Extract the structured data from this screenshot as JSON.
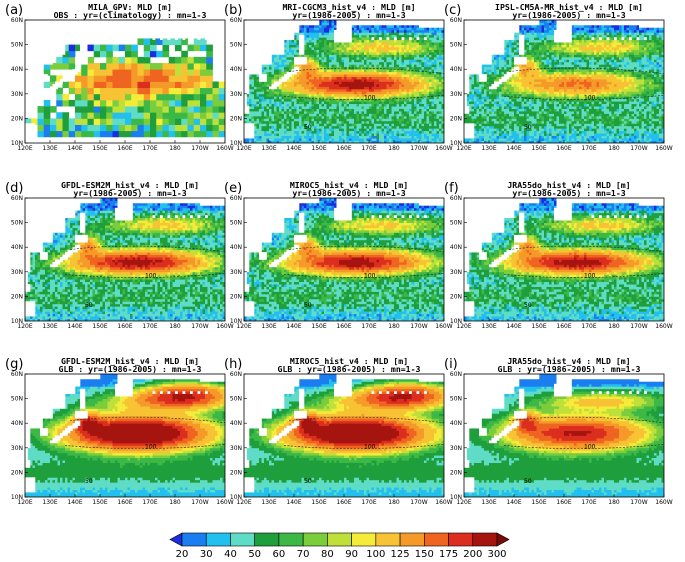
{
  "panels": [
    {
      "label": "(a)",
      "title1": "MILA_GPV: MLD [m]",
      "title2": "OBS : yr=(climatology) : mn=1-3",
      "type": "obs"
    },
    {
      "label": "(b)",
      "title1": "MRI-CGCM3_hist_v4 : MLD [m]",
      "title2": "yr=(1986-2005) : mn=1-3",
      "type": "model"
    },
    {
      "label": "(c)",
      "title1": "IPSL-CM5A-MR_hist_v4 : MLD [m]",
      "title2": "yr=(1986-2005) : mn=1-3",
      "type": "model"
    },
    {
      "label": "(d)",
      "title1": "GFDL-ESM2M_hist_v4 : MLD [m]",
      "title2": "yr=(1986-2005) : mn=1-3",
      "type": "model"
    },
    {
      "label": "(e)",
      "title1": "MIROC5_hist_v4 : MLD [m]",
      "title2": "yr=(1986-2005) : mn=1-3",
      "type": "model"
    },
    {
      "label": "(f)",
      "title1": "JRA55do_hist_v4 : MLD [m]",
      "title2": "yr=(1986-2005) : mn=1-3",
      "type": "model"
    },
    {
      "label": "(g)",
      "title1": "GFDL-ESM2M_hist_v4 : MLD [m]",
      "title2": "GLB : yr=(1986-2005) : mn=1-3",
      "type": "glb"
    },
    {
      "label": "(h)",
      "title1": "MIROC5_hist_v4 : MLD [m]",
      "title2": "GLB : yr=(1986-2005) : mn=1-3",
      "type": "glb"
    },
    {
      "label": "(i)",
      "title1": "JRA55do_hist_v4 : MLD [m]",
      "title2": "GLB : yr=(1986-2005) : mn=1-3",
      "type": "glb"
    }
  ],
  "chart_data": {
    "type": "heatmap",
    "variable": "MLD [m]",
    "x_ticks": [
      "120E",
      "130E",
      "140E",
      "150E",
      "160E",
      "170E",
      "180",
      "170W",
      "160W"
    ],
    "y_ticks": [
      "10N",
      "20N",
      "30N",
      "40N",
      "50N",
      "60N"
    ],
    "xlim": [
      120,
      200
    ],
    "ylim": [
      10,
      60
    ],
    "colorbar_levels": [
      "20",
      "30",
      "40",
      "50",
      "60",
      "70",
      "80",
      "90",
      "100",
      "125",
      "150",
      "175",
      "200",
      "300"
    ],
    "colorbar_colors": [
      "#1a2ee0",
      "#1b7ef0",
      "#22c0ee",
      "#5fdcc6",
      "#1f9e3c",
      "#3cb846",
      "#7ccd3c",
      "#bfe03a",
      "#f5ec3a",
      "#f7c233",
      "#f59a28",
      "#ee6420",
      "#dc2e1e",
      "#a61410",
      "#7a0a08"
    ],
    "contour_labels": [
      "50",
      "100",
      "150"
    ],
    "summary_max_regions": "Kuroshio Extension ~30-40N, 140-180E",
    "panel_peak_values": [
      {
        "panel": "(a)",
        "max_level": "200"
      },
      {
        "panel": "(b)",
        "max_level": "200"
      },
      {
        "panel": "(c)",
        "max_level": "175"
      },
      {
        "panel": "(d)",
        "max_level": "200"
      },
      {
        "panel": "(e)",
        "max_level": "200"
      },
      {
        "panel": "(f)",
        "max_level": "200"
      },
      {
        "panel": "(g)",
        "max_level": "300"
      },
      {
        "panel": "(h)",
        "max_level": "300"
      },
      {
        "panel": "(i)",
        "max_level": "200"
      }
    ]
  }
}
